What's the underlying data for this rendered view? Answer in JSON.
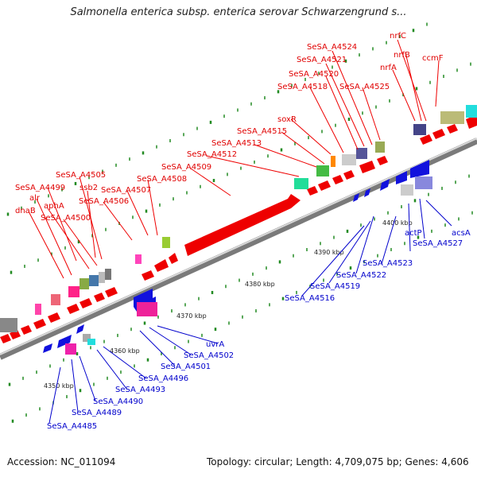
{
  "title": "Salmonella enterica subsp. enterica serovar Schwarzengrund s...",
  "footer": {
    "accession": "Accession: NC_011094",
    "summary": "Topology: circular; Length: 4,709,075 bp; Genes: 4,606"
  },
  "colors": {
    "forward_label": "#e00000",
    "reverse_label": "#0000cc",
    "backbone": "#9a9a9a",
    "tick": "#228b22"
  },
  "scale_labels": [
    "4350 kbp",
    "4360 kbp",
    "4370 kbp",
    "4380 kbp",
    "4390 kbp",
    "4400 kbp"
  ],
  "forward_labels": [
    "SeSA_A4524",
    "nrfC",
    "SeSA_A4521",
    "nrfB",
    "ccmF",
    "SeSA_A4520",
    "nrfA",
    "SeSA_A4518",
    "SeSA_A4525",
    "soxR",
    "SeSA_A4515",
    "SeSA_A4513",
    "SeSA_A4512",
    "SeSA_A4509",
    "SeSA_A4505",
    "SeSA_A4508",
    "SeSA_A4499",
    "ssb2",
    "SeSA_A4507",
    "alr",
    "SeSA_A4506",
    "aphA",
    "dnaB",
    "SeSA_A4500"
  ],
  "reverse_labels": [
    "acsA",
    "SeSA_A4527",
    "actP",
    "SeSA_A4523",
    "SeSA_A4522",
    "SeSA_A4519",
    "SeSA_A4516",
    "uvrA",
    "SeSA_A4502",
    "SeSA_A4501",
    "SeSA_A4496",
    "SeSA_A4493",
    "SeSA_A4490",
    "SeSA_A4489",
    "SeSA_A4485"
  ]
}
